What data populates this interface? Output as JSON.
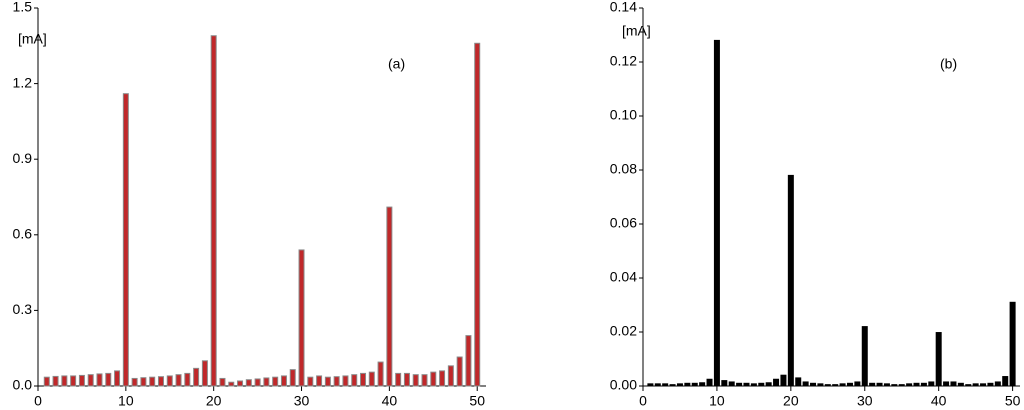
{
  "chart_data": [
    {
      "type": "bar",
      "annotation": "(a)",
      "unit_label": "[mA]",
      "color": "#c0282a",
      "edge_color": "#8a8a8a",
      "x": [
        1,
        2,
        3,
        4,
        5,
        6,
        7,
        8,
        9,
        10,
        11,
        12,
        13,
        14,
        15,
        16,
        17,
        18,
        19,
        20,
        21,
        22,
        23,
        24,
        25,
        26,
        27,
        28,
        29,
        30,
        31,
        32,
        33,
        34,
        35,
        36,
        37,
        38,
        39,
        40,
        41,
        42,
        43,
        44,
        45,
        46,
        47,
        48,
        49,
        50
      ],
      "values": [
        0.035,
        0.038,
        0.04,
        0.04,
        0.042,
        0.045,
        0.048,
        0.05,
        0.06,
        1.16,
        0.03,
        0.033,
        0.035,
        0.037,
        0.04,
        0.045,
        0.05,
        0.07,
        0.1,
        1.39,
        0.03,
        0.015,
        0.02,
        0.025,
        0.028,
        0.032,
        0.035,
        0.04,
        0.065,
        0.54,
        0.035,
        0.04,
        0.035,
        0.037,
        0.04,
        0.045,
        0.05,
        0.055,
        0.095,
        0.71,
        0.05,
        0.05,
        0.045,
        0.045,
        0.055,
        0.06,
        0.08,
        0.115,
        0.2,
        1.36
      ],
      "xlim": [
        0,
        51
      ],
      "xticks": [
        0,
        10,
        20,
        30,
        40,
        50
      ],
      "ylim": [
        0,
        1.5
      ],
      "yticks": [
        {
          "value": 0,
          "label": "0.0"
        },
        0.3,
        0.6,
        0.9,
        1.2,
        1.5
      ]
    },
    {
      "type": "bar",
      "annotation": "(b)",
      "unit_label": "[mA]",
      "color": "#000000",
      "edge_color": "#000000",
      "x": [
        1,
        2,
        3,
        4,
        5,
        6,
        7,
        8,
        9,
        10,
        11,
        12,
        13,
        14,
        15,
        16,
        17,
        18,
        19,
        20,
        21,
        22,
        23,
        24,
        25,
        26,
        27,
        28,
        29,
        30,
        31,
        32,
        33,
        34,
        35,
        36,
        37,
        38,
        39,
        40,
        41,
        42,
        43,
        44,
        45,
        46,
        47,
        48,
        49,
        50
      ],
      "values": [
        0.0008,
        0.0008,
        0.0008,
        0.0005,
        0.0008,
        0.001,
        0.001,
        0.0012,
        0.0025,
        0.128,
        0.002,
        0.0015,
        0.001,
        0.001,
        0.0008,
        0.001,
        0.0012,
        0.0025,
        0.004,
        0.078,
        0.003,
        0.0015,
        0.001,
        0.0008,
        0.0005,
        0.0005,
        0.0008,
        0.001,
        0.0015,
        0.022,
        0.001,
        0.001,
        0.0008,
        0.0005,
        0.0005,
        0.0008,
        0.001,
        0.001,
        0.0015,
        0.0198,
        0.0015,
        0.0015,
        0.001,
        0.0005,
        0.0008,
        0.0008,
        0.001,
        0.0015,
        0.0035,
        0.031
      ],
      "xlim": [
        0,
        51
      ],
      "xticks": [
        0,
        10,
        20,
        30,
        40,
        50
      ],
      "ylim": [
        0,
        0.14
      ],
      "yticks": [
        {
          "value": 0,
          "label": "0.00"
        },
        {
          "value": 0.02,
          "label": "0.02"
        },
        {
          "value": 0.04,
          "label": "0.04"
        },
        {
          "value": 0.06,
          "label": "0.06"
        },
        {
          "value": 0.08,
          "label": "0.08"
        },
        {
          "value": 0.1,
          "label": "0.10"
        },
        {
          "value": 0.12,
          "label": "0.12"
        },
        {
          "value": 0.14,
          "label": "0.14"
        }
      ]
    }
  ]
}
